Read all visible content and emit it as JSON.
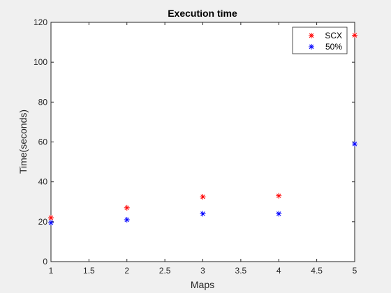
{
  "chart_data": {
    "type": "scatter",
    "title": "Execution time",
    "xlabel": "Maps",
    "ylabel": "Time(seconds)",
    "xlim": [
      1,
      5
    ],
    "ylim": [
      0,
      120
    ],
    "xticks": [
      "1",
      "1.5",
      "2",
      "2.5",
      "3",
      "3.5",
      "4",
      "4.5",
      "5"
    ],
    "yticks": [
      "0",
      "20",
      "40",
      "60",
      "80",
      "100",
      "120"
    ],
    "grid": false,
    "legend_position": "top-right",
    "marker": "*",
    "series": [
      {
        "name": "SCX",
        "color": "#ff0000",
        "x": [
          1,
          2,
          3,
          4,
          5
        ],
        "y": [
          22,
          27,
          32.5,
          33,
          113.5
        ]
      },
      {
        "name": "50%",
        "color": "#0000ff",
        "x": [
          1,
          2,
          3,
          4,
          5
        ],
        "y": [
          19.5,
          21,
          24,
          24,
          59
        ]
      }
    ]
  }
}
